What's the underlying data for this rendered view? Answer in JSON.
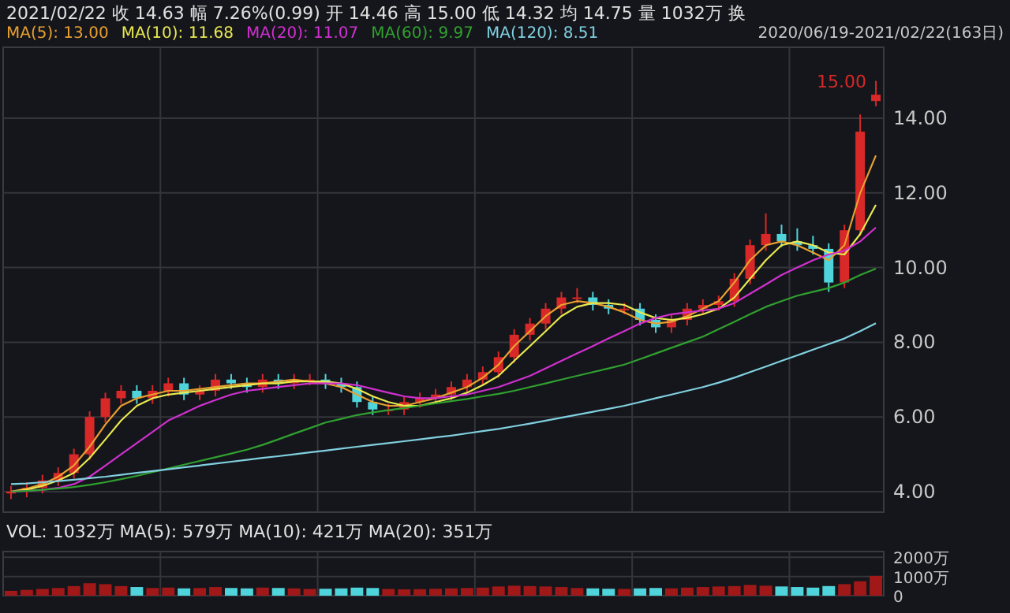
{
  "chart_data": [
    {
      "type": "candlestick",
      "title": "2021/02/22 收 14.63 幅 7.26%(0.99) 开 14.46 高 15.00 低 14.32 均 14.75 量 1032万 换",
      "subtitle": "2020/06/19-2021/02/22(163日)",
      "annotations": [
        "15.00"
      ],
      "grid": true,
      "categories": [
        null,
        null,
        null,
        null,
        null,
        null,
        null,
        null,
        null,
        null,
        null,
        null,
        null,
        null,
        null,
        null,
        null,
        null,
        null,
        null,
        null,
        null,
        null,
        null,
        null,
        null,
        null,
        null,
        null,
        null,
        null,
        null,
        null,
        null,
        null,
        null,
        null,
        null,
        null,
        null,
        null,
        null,
        null,
        null,
        null,
        null,
        null,
        null,
        null,
        null,
        null,
        null,
        null,
        null,
        null,
        null
      ],
      "ylim": [
        3.45,
        15.9
      ],
      "yticks": [
        {
          "value": 4,
          "label": "4.00"
        },
        {
          "value": 6,
          "label": "6.00"
        },
        {
          "value": 8,
          "label": "8.00"
        },
        {
          "value": 10,
          "label": "10.00"
        },
        {
          "value": 12,
          "label": "12.00"
        },
        {
          "value": 14,
          "label": "14.00"
        }
      ],
      "ohlc": [
        [
          3.95,
          4.15,
          3.8,
          4.0
        ],
        [
          4.0,
          4.25,
          3.85,
          4.1
        ],
        [
          4.1,
          4.45,
          3.95,
          4.3
        ],
        [
          4.3,
          4.65,
          4.15,
          4.5
        ],
        [
          4.5,
          5.15,
          4.35,
          5.0
        ],
        [
          5.0,
          6.15,
          4.85,
          6.0
        ],
        [
          6.0,
          6.65,
          5.85,
          6.5
        ],
        [
          6.5,
          6.85,
          6.35,
          6.7
        ],
        [
          6.7,
          6.85,
          6.35,
          6.5
        ],
        [
          6.5,
          6.85,
          6.35,
          6.7
        ],
        [
          6.7,
          7.05,
          6.55,
          6.9
        ],
        [
          6.9,
          7.05,
          6.45,
          6.6
        ],
        [
          6.6,
          6.85,
          6.45,
          6.7
        ],
        [
          6.7,
          7.15,
          6.55,
          7.0
        ],
        [
          7.0,
          7.15,
          6.75,
          6.9
        ],
        [
          6.9,
          7.05,
          6.65,
          6.8
        ],
        [
          6.8,
          7.15,
          6.65,
          7.0
        ],
        [
          7.0,
          7.15,
          6.75,
          6.9
        ],
        [
          6.9,
          7.15,
          6.75,
          7.0
        ],
        [
          7.0,
          7.15,
          6.85,
          7.0
        ],
        [
          7.0,
          7.15,
          6.75,
          6.9
        ],
        [
          6.9,
          7.05,
          6.65,
          6.8
        ],
        [
          6.8,
          6.95,
          6.25,
          6.4
        ],
        [
          6.4,
          6.55,
          6.05,
          6.2
        ],
        [
          6.2,
          6.35,
          6.05,
          6.2
        ],
        [
          6.2,
          6.55,
          6.05,
          6.4
        ],
        [
          6.4,
          6.65,
          6.25,
          6.5
        ],
        [
          6.5,
          6.75,
          6.35,
          6.6
        ],
        [
          6.6,
          6.95,
          6.45,
          6.8
        ],
        [
          6.8,
          7.15,
          6.65,
          7.0
        ],
        [
          7.0,
          7.35,
          6.85,
          7.2
        ],
        [
          7.2,
          7.75,
          7.05,
          7.6
        ],
        [
          7.6,
          8.35,
          7.45,
          8.2
        ],
        [
          8.2,
          8.65,
          8.05,
          8.5
        ],
        [
          8.5,
          9.05,
          8.35,
          8.9
        ],
        [
          8.9,
          9.35,
          8.75,
          9.2
        ],
        [
          9.2,
          9.45,
          9.05,
          9.2
        ],
        [
          9.2,
          9.35,
          8.85,
          9.0
        ],
        [
          9.0,
          9.15,
          8.75,
          8.9
        ],
        [
          8.9,
          9.05,
          8.75,
          8.9
        ],
        [
          8.9,
          9.05,
          8.45,
          8.6
        ],
        [
          8.6,
          8.75,
          8.25,
          8.4
        ],
        [
          8.4,
          8.75,
          8.25,
          8.6
        ],
        [
          8.6,
          9.05,
          8.45,
          8.9
        ],
        [
          8.9,
          9.15,
          8.75,
          9.0
        ],
        [
          9.0,
          9.25,
          8.85,
          9.1
        ],
        [
          9.1,
          9.85,
          8.95,
          9.7
        ],
        [
          9.7,
          10.75,
          9.55,
          10.6
        ],
        [
          10.6,
          11.45,
          10.45,
          10.9
        ],
        [
          10.9,
          11.15,
          10.55,
          10.7
        ],
        [
          10.7,
          11.05,
          10.45,
          10.6
        ],
        [
          10.6,
          10.85,
          10.35,
          10.5
        ],
        [
          10.5,
          10.65,
          9.35,
          9.6
        ],
        [
          9.6,
          11.15,
          9.45,
          11.0
        ],
        [
          11.0,
          14.1,
          10.85,
          13.64
        ],
        [
          14.46,
          15.0,
          14.32,
          14.63
        ]
      ],
      "series": [
        {
          "name": "MA(5): 13.00",
          "type": "line",
          "color": "#e8a030",
          "values": [
            4.0,
            4.08,
            4.2,
            4.4,
            4.7,
            5.2,
            5.8,
            6.3,
            6.5,
            6.6,
            6.7,
            6.7,
            6.75,
            6.8,
            6.85,
            6.9,
            6.9,
            6.95,
            7.0,
            6.95,
            6.9,
            6.8,
            6.6,
            6.4,
            6.3,
            6.3,
            6.4,
            6.5,
            6.65,
            6.8,
            7.05,
            7.4,
            7.9,
            8.3,
            8.7,
            9.0,
            9.1,
            9.05,
            8.95,
            8.8,
            8.6,
            8.5,
            8.55,
            8.7,
            8.9,
            9.1,
            9.6,
            10.2,
            10.6,
            10.7,
            10.6,
            10.4,
            10.2,
            10.6,
            12.0,
            13.0
          ]
        },
        {
          "name": "MA(10): 11.68",
          "type": "line",
          "color": "#e8e850",
          "values": [
            4.0,
            4.05,
            4.15,
            4.3,
            4.5,
            4.9,
            5.4,
            5.9,
            6.3,
            6.5,
            6.6,
            6.65,
            6.7,
            6.75,
            6.8,
            6.85,
            6.9,
            6.9,
            6.95,
            6.95,
            6.95,
            6.9,
            6.75,
            6.55,
            6.4,
            6.3,
            6.3,
            6.4,
            6.5,
            6.65,
            6.85,
            7.1,
            7.5,
            7.9,
            8.3,
            8.7,
            8.95,
            9.05,
            9.05,
            9.0,
            8.8,
            8.65,
            8.6,
            8.65,
            8.75,
            8.9,
            9.2,
            9.7,
            10.2,
            10.6,
            10.7,
            10.6,
            10.4,
            10.35,
            10.9,
            11.68
          ]
        },
        {
          "name": "MA(20): 11.07",
          "type": "line",
          "color": "#d030d0",
          "values": [
            4.0,
            4.02,
            4.05,
            4.1,
            4.2,
            4.4,
            4.7,
            5.0,
            5.3,
            5.6,
            5.9,
            6.1,
            6.3,
            6.45,
            6.6,
            6.7,
            6.75,
            6.8,
            6.85,
            6.9,
            6.9,
            6.9,
            6.85,
            6.75,
            6.65,
            6.55,
            6.5,
            6.5,
            6.55,
            6.6,
            6.7,
            6.8,
            6.95,
            7.1,
            7.3,
            7.5,
            7.7,
            7.9,
            8.1,
            8.3,
            8.5,
            8.65,
            8.75,
            8.8,
            8.85,
            8.9,
            9.05,
            9.3,
            9.55,
            9.8,
            10.0,
            10.2,
            10.35,
            10.45,
            10.7,
            11.07
          ]
        },
        {
          "name": "MA(60): 9.97",
          "type": "line",
          "color": "#30a030",
          "values": [
            4.0,
            4.02,
            4.05,
            4.08,
            4.12,
            4.18,
            4.25,
            4.33,
            4.42,
            4.52,
            4.62,
            4.72,
            4.82,
            4.92,
            5.02,
            5.12,
            5.25,
            5.4,
            5.55,
            5.7,
            5.85,
            5.95,
            6.05,
            6.12,
            6.18,
            6.24,
            6.3,
            6.36,
            6.42,
            6.48,
            6.55,
            6.62,
            6.7,
            6.8,
            6.9,
            7.0,
            7.1,
            7.2,
            7.3,
            7.4,
            7.55,
            7.7,
            7.85,
            8.0,
            8.15,
            8.35,
            8.55,
            8.75,
            8.95,
            9.1,
            9.25,
            9.35,
            9.45,
            9.6,
            9.8,
            9.97
          ]
        },
        {
          "name": "MA(120): 8.51",
          "type": "line",
          "color": "#80d0e0",
          "values": [
            4.2,
            4.22,
            4.25,
            4.28,
            4.32,
            4.36,
            4.4,
            4.45,
            4.5,
            4.55,
            4.6,
            4.65,
            4.7,
            4.75,
            4.8,
            4.85,
            4.9,
            4.95,
            5.0,
            5.05,
            5.1,
            5.15,
            5.2,
            5.25,
            5.3,
            5.35,
            5.4,
            5.45,
            5.5,
            5.56,
            5.62,
            5.68,
            5.75,
            5.82,
            5.9,
            5.98,
            6.06,
            6.14,
            6.22,
            6.3,
            6.4,
            6.5,
            6.6,
            6.7,
            6.8,
            6.92,
            7.05,
            7.2,
            7.35,
            7.5,
            7.65,
            7.8,
            7.95,
            8.1,
            8.3,
            8.51
          ]
        }
      ]
    },
    {
      "type": "bar",
      "title": "VOL: 1032万 MA(5): 579万 MA(10): 421万 MA(20): 351万",
      "grid": true,
      "categories": [
        null,
        null,
        null,
        null,
        null,
        null,
        null,
        null,
        null,
        null,
        null,
        null,
        null,
        null,
        null,
        null,
        null,
        null,
        null,
        null,
        null,
        null,
        null,
        null,
        null,
        null,
        null,
        null,
        null,
        null,
        null,
        null,
        null,
        null,
        null,
        null,
        null,
        null,
        null,
        null,
        null,
        null,
        null,
        null,
        null,
        null,
        null,
        null,
        null,
        null,
        null,
        null,
        null,
        null,
        null,
        null
      ],
      "ylim": [
        0,
        2300
      ],
      "yticks": [
        0,
        {
          "value": 1000,
          "label": "1000万"
        },
        {
          "value": 2000,
          "label": "2000万"
        }
      ],
      "values": [
        250,
        300,
        350,
        400,
        500,
        650,
        600,
        500,
        450,
        400,
        420,
        380,
        400,
        450,
        400,
        380,
        420,
        400,
        380,
        350,
        360,
        380,
        420,
        400,
        350,
        330,
        340,
        360,
        380,
        400,
        420,
        480,
        520,
        500,
        480,
        450,
        400,
        380,
        360,
        350,
        380,
        400,
        380,
        420,
        450,
        480,
        500,
        560,
        520,
        480,
        450,
        420,
        500,
        600,
        750,
        1032
      ]
    }
  ]
}
